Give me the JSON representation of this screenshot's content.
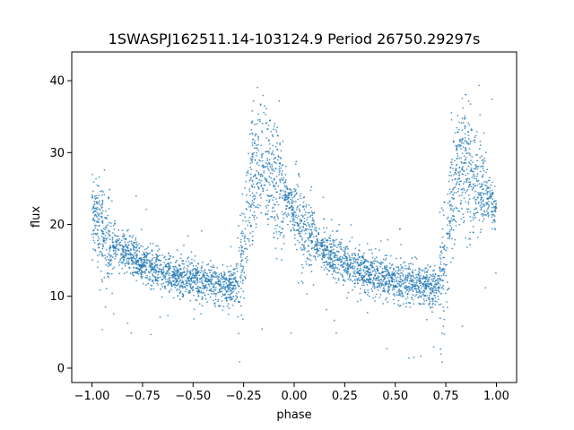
{
  "chart_data": {
    "type": "scatter",
    "title": "1SWASPJ162511.14-103124.9 Period 26750.29297s",
    "xlabel": "phase",
    "ylabel": "flux",
    "xlim": [
      -1.1,
      1.1
    ],
    "ylim": [
      -2,
      44
    ],
    "xticks": [
      -1.0,
      -0.75,
      -0.5,
      -0.25,
      0.0,
      0.25,
      0.5,
      0.75,
      1.0
    ],
    "xtick_labels": [
      "−1.00",
      "−0.75",
      "−0.50",
      "−0.25",
      "0.00",
      "0.25",
      "0.50",
      "0.75",
      "1.00"
    ],
    "yticks": [
      0,
      10,
      20,
      30,
      40
    ],
    "ytick_labels": [
      "0",
      "10",
      "20",
      "30",
      "40"
    ],
    "grid": false,
    "legend": "none",
    "marker_color": "#1f77b4",
    "series": [
      {
        "phase_flux_profile": [
          [
            -1.0,
            22.0
          ],
          [
            -0.95,
            19.0
          ],
          [
            -0.9,
            17.5
          ],
          [
            -0.85,
            16.3
          ],
          [
            -0.8,
            15.4
          ],
          [
            -0.75,
            14.6
          ],
          [
            -0.7,
            14.0
          ],
          [
            -0.65,
            13.5
          ],
          [
            -0.6,
            13.0
          ],
          [
            -0.55,
            12.6
          ],
          [
            -0.5,
            12.3
          ],
          [
            -0.45,
            12.0
          ],
          [
            -0.4,
            11.7
          ],
          [
            -0.35,
            11.4
          ],
          [
            -0.3,
            11.2
          ],
          [
            -0.27,
            11.5
          ],
          [
            -0.25,
            16.0
          ],
          [
            -0.22,
            24.0
          ],
          [
            -0.2,
            27.0
          ],
          [
            -0.15,
            27.5
          ],
          [
            -0.1,
            26.0
          ],
          [
            -0.05,
            24.0
          ],
          [
            0.0,
            22.0
          ],
          [
            0.05,
            19.0
          ],
          [
            0.1,
            17.5
          ],
          [
            0.15,
            16.3
          ],
          [
            0.2,
            15.4
          ],
          [
            0.25,
            14.6
          ],
          [
            0.3,
            14.0
          ],
          [
            0.35,
            13.5
          ],
          [
            0.4,
            13.0
          ],
          [
            0.45,
            12.6
          ],
          [
            0.5,
            12.3
          ],
          [
            0.55,
            12.0
          ],
          [
            0.6,
            11.7
          ],
          [
            0.65,
            11.4
          ],
          [
            0.7,
            11.2
          ],
          [
            0.73,
            11.5
          ],
          [
            0.75,
            16.0
          ],
          [
            0.78,
            24.0
          ],
          [
            0.8,
            27.0
          ],
          [
            0.85,
            27.5
          ],
          [
            0.9,
            26.0
          ],
          [
            0.95,
            24.0
          ],
          [
            1.0,
            22.0
          ]
        ]
      }
    ]
  }
}
